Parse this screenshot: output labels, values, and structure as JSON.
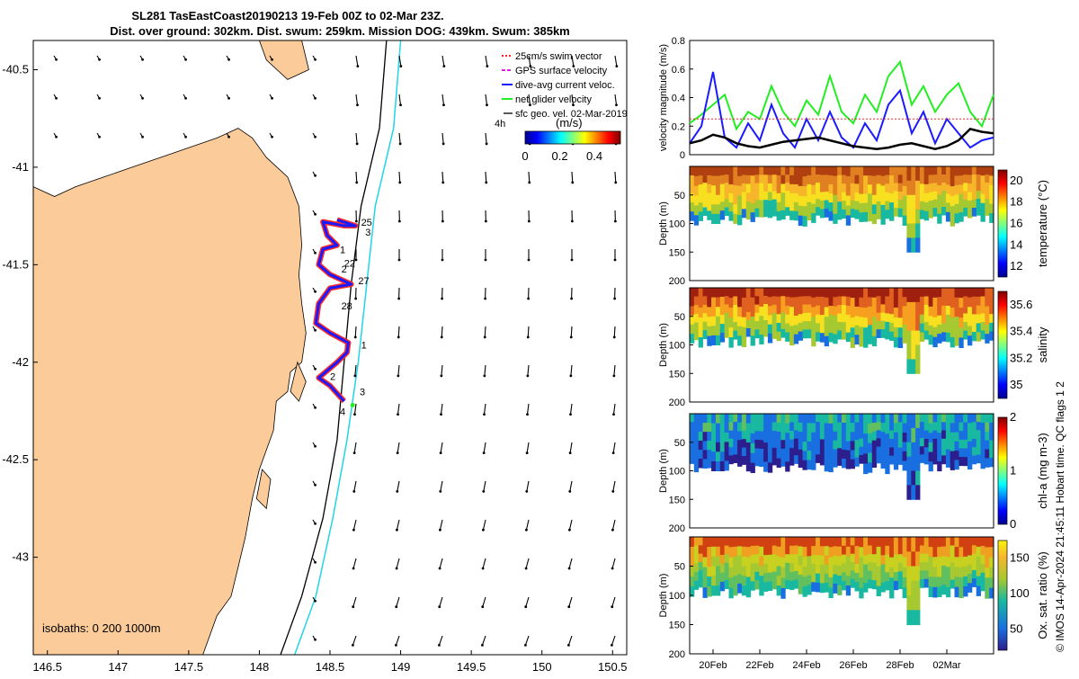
{
  "title": {
    "line1": "SL281 TasEastCoast20190213 19-Feb 00Z to 02-Mar 23Z.",
    "line2": "Dist. over ground: 302km. Dist. swum: 259km. Mission DOG: 439km. Swum: 385km"
  },
  "colors": {
    "land": "#fbcb9a",
    "isobath_shallow": "#000000",
    "isobath_deep": "#22d4e6",
    "track_red": "#ff2a2a",
    "track_blue": "#1a1aff",
    "speed_green": "#22ee22",
    "swim_red": "#ff2020",
    "black": "#000000"
  },
  "map": {
    "xticks": [
      "146.5",
      "147",
      "147.5",
      "148",
      "148.5",
      "149",
      "149.5",
      "150",
      "150.5"
    ],
    "yticks": [
      "-40.5",
      "-41",
      "-41.5",
      "-42",
      "-42.5",
      "-43"
    ],
    "legend": [
      {
        "label": "25cm/s swim vector",
        "color": "#ff2020",
        "style": "dot"
      },
      {
        "label": "GPS surface velocity",
        "color": "#e020e0",
        "style": "dash"
      },
      {
        "label": "dive-avg current veloc.",
        "color": "#1a1aff",
        "style": "solid"
      },
      {
        "label": "net glider velocity",
        "color": "#22ee22",
        "style": "solid"
      },
      {
        "label": "sfc geo. vel. 02-Mar-2019",
        "color": "#000000",
        "style": "arrow"
      }
    ],
    "scale_label": "4h",
    "colorbar_label": "(m/s)",
    "colorbar_ticks": [
      "0",
      "0.2",
      "0.4"
    ],
    "isobaths_label": "isobaths: 0   200   1000m",
    "track_labels": [
      {
        "text": "27",
        "lon": 148.7,
        "lat": -41.6
      },
      {
        "text": "28",
        "lon": 148.58,
        "lat": -41.73
      },
      {
        "text": "1",
        "lon": 148.72,
        "lat": -41.93
      },
      {
        "text": "2",
        "lon": 148.5,
        "lat": -42.09
      },
      {
        "text": "3",
        "lon": 148.71,
        "lat": -42.17
      },
      {
        "text": "4",
        "lon": 148.57,
        "lat": -42.27
      },
      {
        "text": "22",
        "lon": 148.6,
        "lat": -41.51
      },
      {
        "text": "2",
        "lon": 148.58,
        "lat": -41.54
      },
      {
        "text": "1",
        "lon": 148.57,
        "lat": -41.44
      },
      {
        "text": "3",
        "lon": 148.75,
        "lat": -41.35
      },
      {
        "text": "25",
        "lon": 148.72,
        "lat": -41.3
      }
    ]
  },
  "chart_data": [
    {
      "type": "line",
      "ylabel": "velocity magnitude (m/s)",
      "ylim": [
        0,
        0.8
      ],
      "yticks": [
        "0",
        "0.2",
        "0.4",
        "0.6",
        "0.8"
      ],
      "xlim": [
        19,
        32
      ],
      "series": [
        {
          "name": "net glider velocity",
          "color": "#22ee22",
          "x": [
            19,
            19.5,
            20,
            20.5,
            21,
            21.5,
            22,
            22.5,
            23,
            23.5,
            24,
            24.5,
            25,
            25.5,
            26,
            26.5,
            27,
            27.5,
            28,
            28.5,
            29,
            29.5,
            30,
            30.5,
            31,
            31.5,
            32
          ],
          "values": [
            0.22,
            0.28,
            0.35,
            0.42,
            0.18,
            0.3,
            0.25,
            0.48,
            0.3,
            0.2,
            0.38,
            0.28,
            0.55,
            0.3,
            0.22,
            0.42,
            0.3,
            0.55,
            0.65,
            0.35,
            0.48,
            0.3,
            0.42,
            0.5,
            0.3,
            0.2,
            0.42
          ]
        },
        {
          "name": "dive-avg current veloc.",
          "color": "#1a1aff",
          "x": [
            19,
            19.5,
            20,
            20.5,
            21,
            21.5,
            22,
            22.5,
            23,
            23.5,
            24,
            24.5,
            25,
            25.5,
            26,
            26.5,
            27,
            27.5,
            28,
            28.5,
            29,
            29.5,
            30,
            30.5,
            31,
            31.5,
            32
          ],
          "values": [
            0.08,
            0.2,
            0.58,
            0.12,
            0.05,
            0.22,
            0.1,
            0.35,
            0.15,
            0.05,
            0.25,
            0.1,
            0.3,
            0.12,
            0.05,
            0.22,
            0.1,
            0.35,
            0.45,
            0.15,
            0.3,
            0.08,
            0.25,
            0.15,
            0.05,
            0.1,
            0.12
          ]
        },
        {
          "name": "sfc geo. vel.",
          "color": "#000000",
          "x": [
            19,
            19.5,
            20,
            20.5,
            21,
            21.5,
            22,
            22.5,
            23,
            23.5,
            24,
            24.5,
            25,
            25.5,
            26,
            26.5,
            27,
            27.5,
            28,
            28.5,
            29,
            29.5,
            30,
            30.5,
            31,
            31.5,
            32
          ],
          "values": [
            0.08,
            0.1,
            0.14,
            0.12,
            0.08,
            0.06,
            0.05,
            0.07,
            0.09,
            0.1,
            0.11,
            0.12,
            0.1,
            0.08,
            0.06,
            0.05,
            0.04,
            0.05,
            0.07,
            0.08,
            0.06,
            0.04,
            0.06,
            0.1,
            0.18,
            0.16,
            0.15
          ]
        },
        {
          "name": "25cm/s swim vector",
          "color": "#ff2020",
          "x": [
            19,
            32
          ],
          "values": [
            0.25,
            0.25
          ]
        }
      ]
    },
    {
      "type": "heatmap",
      "ylabel": "Depth (m)",
      "clabel": "temperature (°C)",
      "ylim": [
        0,
        200
      ],
      "yticks": [
        "50",
        "100",
        "150",
        "200"
      ],
      "cticks": [
        "12",
        "14",
        "16",
        "18",
        "20"
      ],
      "clim": [
        11,
        21
      ]
    },
    {
      "type": "heatmap",
      "ylabel": "Depth (m)",
      "clabel": "salinity",
      "ylim": [
        0,
        200
      ],
      "yticks": [
        "50",
        "100",
        "150",
        "200"
      ],
      "cticks": [
        "35",
        "35.2",
        "35.4",
        "35.6"
      ],
      "clim": [
        34.9,
        35.7
      ]
    },
    {
      "type": "heatmap",
      "ylabel": "Depth (m)",
      "clabel": "chl-a (mg m-3)",
      "ylim": [
        0,
        200
      ],
      "yticks": [
        "50",
        "100",
        "150",
        "200"
      ],
      "cticks": [
        "0",
        "1",
        "2"
      ],
      "clim": [
        0,
        2
      ]
    },
    {
      "type": "heatmap",
      "ylabel": "Depth (m)",
      "clabel": "Ox. sat. ratio (%)",
      "ylim": [
        0,
        200
      ],
      "yticks": [
        "50",
        "100",
        "150",
        "200"
      ],
      "cticks": [
        "50",
        "100",
        "150"
      ],
      "clim": [
        20,
        175
      ]
    }
  ],
  "time_axis": [
    "20Feb",
    "22Feb",
    "24Feb",
    "26Feb",
    "28Feb",
    "02Mar"
  ],
  "side_note": "© IMOS 14-Apr-2024 21:45:11 Hobart time. QC flags 1  2"
}
